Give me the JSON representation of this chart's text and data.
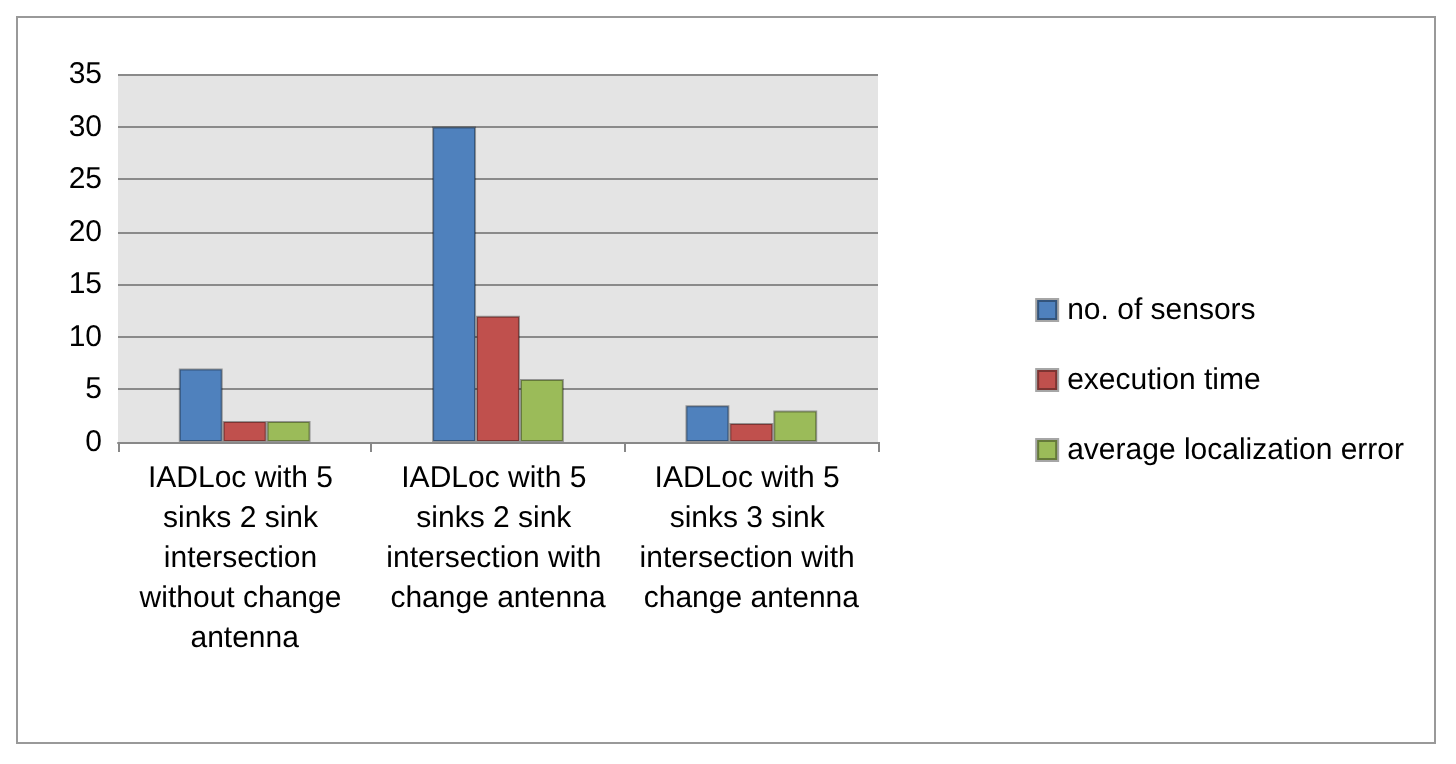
{
  "chart_data": {
    "type": "bar",
    "categories": [
      "IADLoc with 5 sinks 2 sink intersection without change antenna",
      "IADLoc with 5 sinks 2 sink intersection with change antenna",
      "IADLoc with 5 sinks 3 sink intersection with change antenna"
    ],
    "series": [
      {
        "name": "no. of sensors",
        "color": "#4f81bd",
        "values": [
          7,
          30,
          3.5
        ]
      },
      {
        "name": "execution time",
        "color": "#c0504d",
        "values": [
          2,
          12,
          1.8
        ]
      },
      {
        "name": "average localization error",
        "color": "#9bbb59",
        "values": [
          2,
          6,
          3
        ]
      }
    ],
    "ylim": [
      0,
      35
    ],
    "yticks": [
      0,
      5,
      10,
      15,
      20,
      25,
      30,
      35
    ],
    "grid": "y",
    "legend": "right"
  }
}
